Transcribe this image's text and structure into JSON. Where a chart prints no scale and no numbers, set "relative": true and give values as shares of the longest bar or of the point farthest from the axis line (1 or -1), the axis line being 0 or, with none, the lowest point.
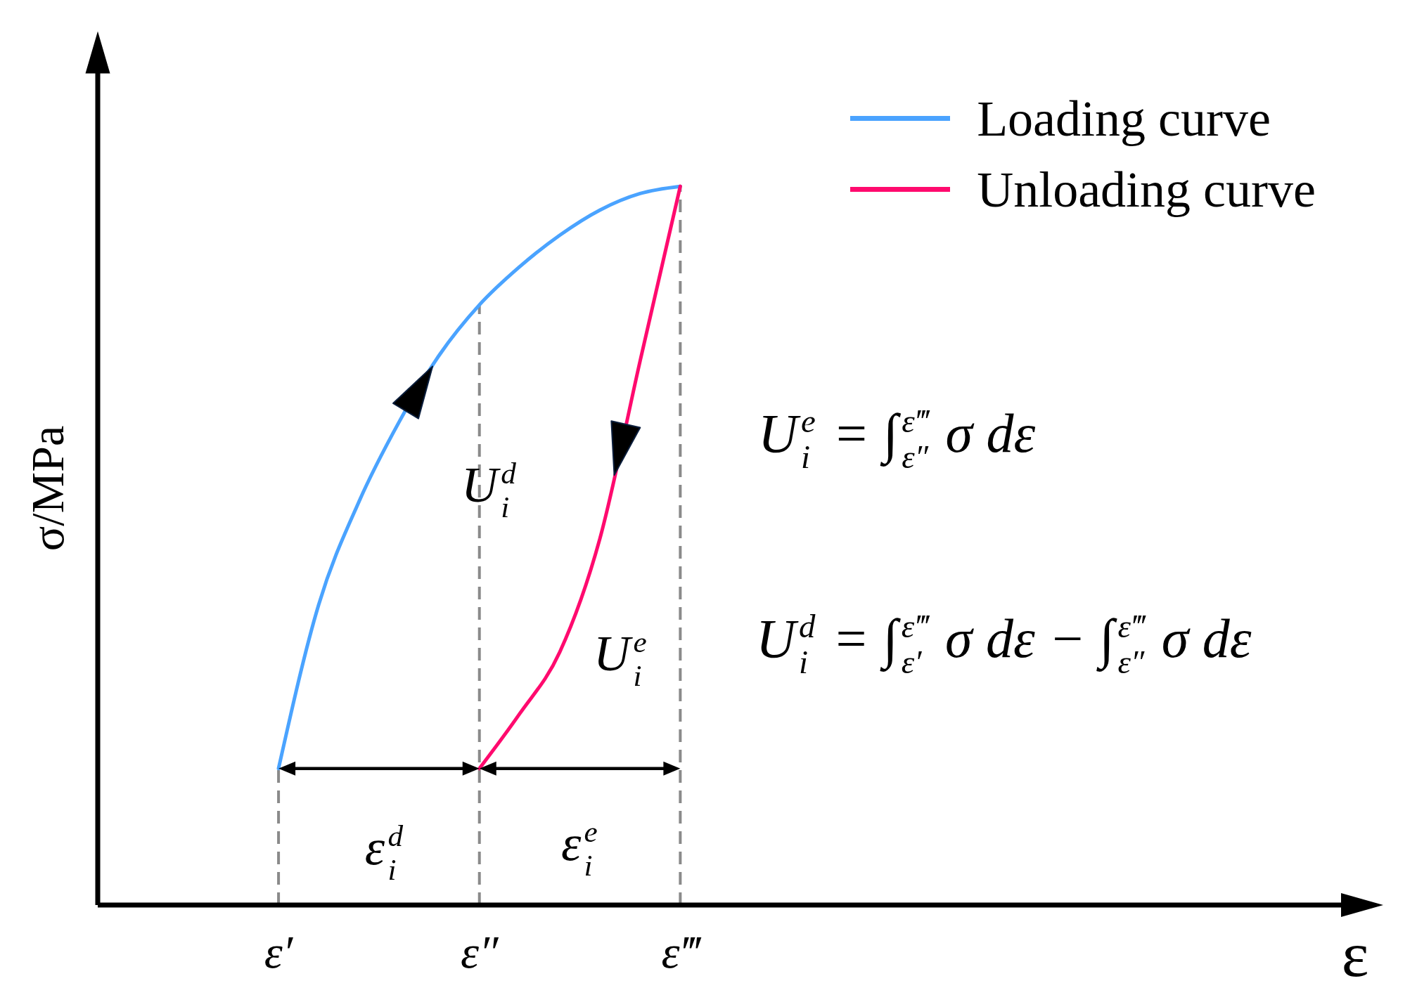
{
  "chart_data": {
    "type": "line",
    "relative": true,
    "ylabel": "σ/MPa",
    "xlabel": "ε",
    "categories": [
      null,
      null,
      null,
      null,
      "ε′",
      null,
      null,
      null,
      null,
      "ε″",
      null,
      null,
      null,
      null,
      "ε‴",
      null,
      null,
      null,
      null,
      null,
      null,
      null,
      null,
      null,
      null,
      null,
      null,
      null,
      null,
      null,
      null
    ],
    "series": [
      {
        "name": "Loading curve",
        "color": "#4aa3ff",
        "values": [
          null,
          null,
          null,
          null,
          0.19,
          0.418,
          0.561,
          0.672,
          0.765,
          0.835,
          0.888,
          0.932,
          0.967,
          0.99,
          1,
          null,
          null,
          null,
          null,
          null,
          null,
          null,
          null,
          null,
          null,
          null,
          null,
          null,
          null,
          null,
          null
        ]
      },
      {
        "name": "Unloading curve",
        "color": "#ff0a6e",
        "values": [
          null,
          null,
          null,
          null,
          null,
          null,
          null,
          null,
          null,
          0.19,
          0.266,
          0.352,
          0.51,
          0.757,
          1,
          null,
          null,
          null,
          null,
          null,
          null,
          null,
          null,
          null,
          null,
          null,
          null,
          null,
          null,
          null,
          null
        ]
      }
    ],
    "ref_lines": [
      {
        "axis": "x",
        "value": "ε′",
        "color": "#8a8a8a",
        "line_style": "dashed"
      },
      {
        "axis": "x",
        "value": "ε″",
        "color": "#8a8a8a",
        "line_style": "dashed"
      },
      {
        "axis": "x",
        "value": "ε‴",
        "color": "#8a8a8a",
        "line_style": "dashed"
      }
    ],
    "annotations": [
      "ε$^{d}$$_{i}$",
      "ε$^{e}$$_{i}$",
      "U$^{d}$$_{i}$",
      "U$^{e}$$_{i}$",
      "U$^{e}$$_{i}$ = ∫$^{ε‴}$$_{ε″}$ σ dε",
      "U$^{d}$$_{i}$ = ∫$^{ε‴}$$_{ε′}$ σ dε − ∫$^{ε‴}$$_{ε″}$ σ dε"
    ],
    "legend": "top right"
  }
}
